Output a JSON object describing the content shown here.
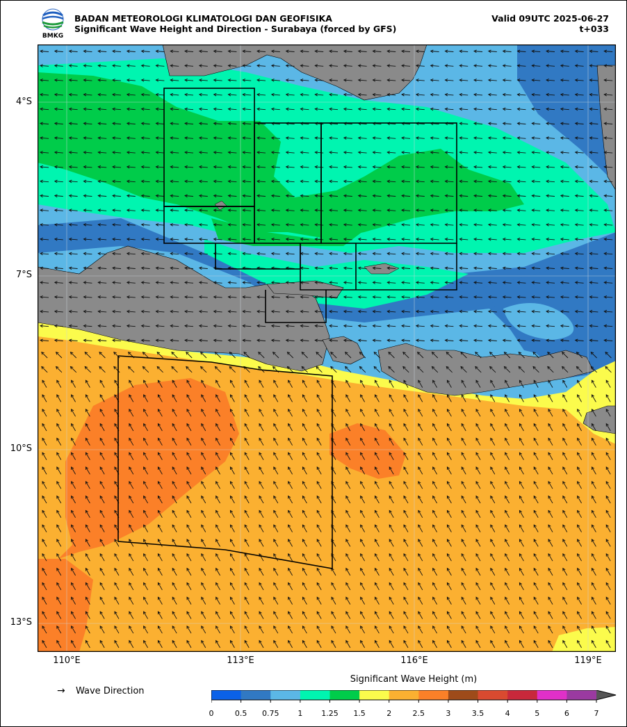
{
  "header": {
    "agency": "BADAN METEOROLOGI KLIMATOLOGI DAN GEOFISIKA",
    "title": "Significant Wave Height and Direction - Surabaya (forced by GFS)",
    "valid": "Valid 09UTC 2025-06-27",
    "lead": "t+033",
    "logo_text": "BMKG"
  },
  "axes": {
    "lat_labels": [
      "4°S",
      "7°S",
      "10°S",
      "13°S"
    ],
    "lon_labels": [
      "110°E",
      "113°E",
      "116°E",
      "119°E"
    ],
    "lon_range": [
      109.5,
      119.5
    ],
    "lat_range": [
      -2.2,
      -12.7
    ]
  },
  "legend": {
    "arrow_glyph": "→",
    "label": "Wave Direction"
  },
  "colorbar": {
    "title": "Significant Wave Height (m)",
    "ticks": [
      "0",
      "0.5",
      "0.75",
      "1",
      "1.25",
      "1.5",
      "2",
      "2.5",
      "3",
      "3.5",
      "4",
      "5",
      "6",
      "7"
    ],
    "colors": [
      "#0b61e8",
      "#3179c3",
      "#5bb7e6",
      "#00f5b0",
      "#00cc4a",
      "#fbfb4c",
      "#fbb031",
      "#fb8028",
      "#9e4b1a",
      "#d94a30",
      "#c8283b",
      "#e030c8",
      "#9a3aa0"
    ],
    "extend_color": "#555555"
  },
  "map_colors": {
    "land": "#8a8a8a",
    "ocean_low": "#5bb7e6"
  }
}
